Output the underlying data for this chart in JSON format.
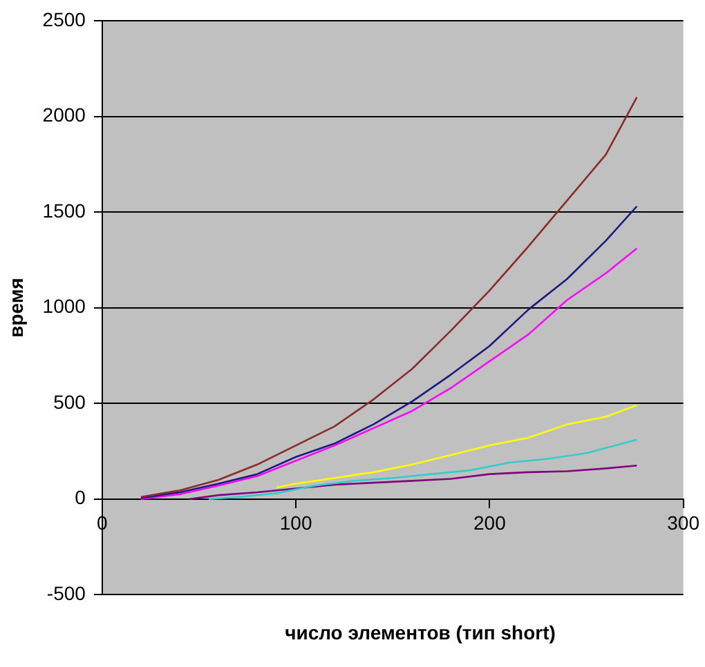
{
  "chart_data": {
    "type": "line",
    "xlabel": "число элементов (тип short)",
    "ylabel": "время",
    "xlim": [
      0,
      300
    ],
    "xticks": [
      0,
      100,
      200,
      300
    ],
    "ylim": [
      -500,
      2500
    ],
    "yticks": [
      -500,
      0,
      500,
      1000,
      1500,
      2000,
      2500
    ],
    "grid": "y",
    "marker": "none",
    "line_style": "solid",
    "series": [
      {
        "color": "#8b2a2a",
        "x": [
          20,
          40,
          60,
          80,
          100,
          120,
          140,
          160,
          180,
          200,
          220,
          240,
          260,
          276
        ],
        "values": [
          10,
          45,
          100,
          180,
          280,
          380,
          520,
          680,
          880,
          1090,
          1320,
          1560,
          1800,
          2100
        ]
      },
      {
        "color": "#1a1a80",
        "x": [
          20,
          40,
          60,
          80,
          100,
          120,
          140,
          160,
          180,
          200,
          220,
          240,
          260,
          276
        ],
        "values": [
          5,
          35,
          80,
          130,
          220,
          290,
          390,
          510,
          650,
          800,
          990,
          1150,
          1350,
          1530
        ]
      },
      {
        "color": "#ff00ff",
        "x": [
          20,
          40,
          60,
          80,
          100,
          120,
          140,
          160,
          180,
          200,
          220,
          240,
          260,
          276
        ],
        "values": [
          0,
          25,
          70,
          120,
          200,
          280,
          370,
          460,
          580,
          720,
          860,
          1040,
          1180,
          1310
        ]
      },
      {
        "color": "#ffff00",
        "x": [
          90,
          100,
          120,
          140,
          160,
          180,
          200,
          220,
          240,
          260,
          276
        ],
        "values": [
          60,
          80,
          110,
          140,
          180,
          230,
          280,
          320,
          390,
          430,
          490
        ]
      },
      {
        "color": "#33cccc",
        "x": [
          55,
          70,
          90,
          110,
          130,
          150,
          170,
          190,
          210,
          230,
          250,
          276
        ],
        "values": [
          0,
          10,
          30,
          70,
          95,
          110,
          130,
          150,
          190,
          210,
          240,
          310
        ]
      },
      {
        "color": "#800080",
        "x": [
          45,
          60,
          80,
          100,
          120,
          140,
          160,
          180,
          200,
          220,
          240,
          260,
          276
        ],
        "values": [
          0,
          20,
          35,
          55,
          75,
          85,
          95,
          105,
          130,
          140,
          145,
          160,
          175
        ]
      }
    ]
  }
}
